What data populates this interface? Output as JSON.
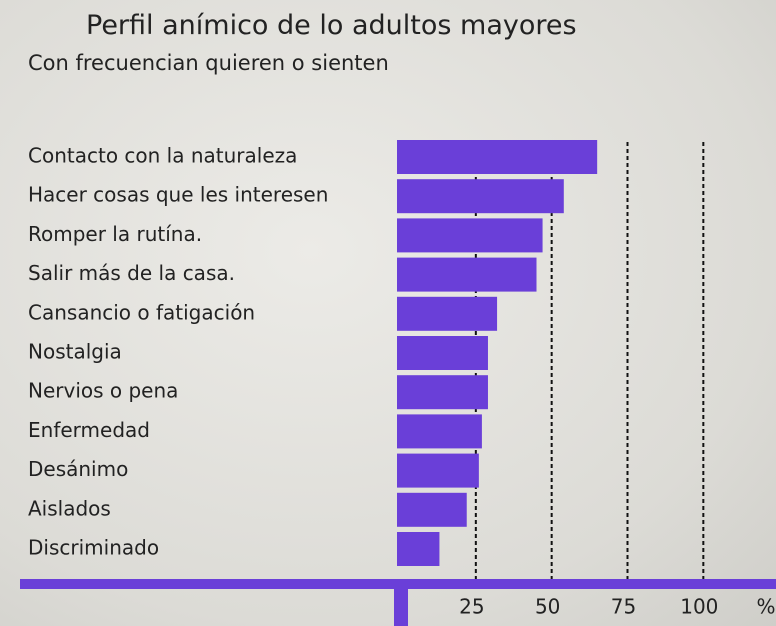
{
  "chart_data": {
    "type": "hbar",
    "title": "Perfil anímico de lo adultos mayores",
    "subtitle": "Con frecuencian quieren o sienten",
    "categories": [
      "Contacto con la naturaleza",
      "Hacer cosas que les interesen",
      "Romper la rutína.",
      "Salir más de la casa.",
      "Cansancio o fatigación",
      "Nostalgia",
      "Nervios o pena",
      "Enfermedad",
      "Desánimo",
      "Aislados",
      "Discriminado"
    ],
    "values": [
      65,
      54,
      47,
      45,
      32,
      29,
      29,
      27,
      26,
      22,
      13
    ],
    "color": "#6a3fd8",
    "xlabel": "%",
    "xlim": [
      0,
      120
    ],
    "xticks": [
      25,
      50,
      75,
      100
    ],
    "grid": true
  }
}
